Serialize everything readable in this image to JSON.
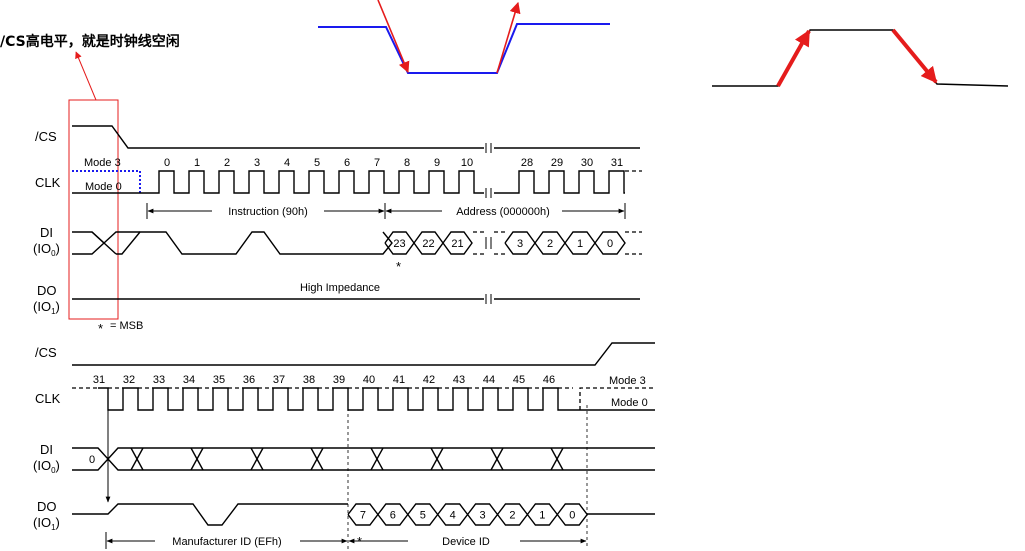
{
  "annotation": {
    "note": "/CS高电平，就是时钟线空闲",
    "accent_color": "#e51c1c",
    "edge_blue": "#1a1aee"
  },
  "top": {
    "cs_label": "/CS",
    "clk_label": "CLK",
    "di_label": "DI",
    "di_sub_label_prefix": "(IO",
    "di_sub_index": "0",
    "do_label": "DO",
    "do_sub_index": "1",
    "mode3": "Mode 3",
    "mode0": "Mode 0",
    "clk_numbers_a": [
      "0",
      "1",
      "2",
      "3",
      "4",
      "5",
      "6",
      "7",
      "8",
      "9",
      "10"
    ],
    "clk_numbers_b": [
      "28",
      "29",
      "30",
      "31"
    ],
    "instruction_span": "Instruction (90h)",
    "address_span": "Address (000000h)",
    "di_bits_a": [
      "23",
      "22",
      "21"
    ],
    "di_bits_b": [
      "3",
      "2",
      "1",
      "0"
    ],
    "msb_star": "*",
    "high_impedance": "High Impedance",
    "msb_note_star": "*",
    "msb_note": "= MSB"
  },
  "bottom": {
    "cs_label": "/CS",
    "clk_label": "CLK",
    "di_label": "DI",
    "do_label": "DO",
    "mode3": "Mode 3",
    "mode0": "Mode 0",
    "clk_numbers": [
      "31",
      "32",
      "33",
      "34",
      "35",
      "36",
      "37",
      "38",
      "39",
      "40",
      "41",
      "42",
      "43",
      "44",
      "45",
      "46"
    ],
    "di_zero": "0",
    "do_bits": [
      "7",
      "6",
      "5",
      "4",
      "3",
      "2",
      "1",
      "0"
    ],
    "manufacturer_span": "Manufacturer ID (EFh)",
    "device_span": "Device ID",
    "star": "*"
  }
}
